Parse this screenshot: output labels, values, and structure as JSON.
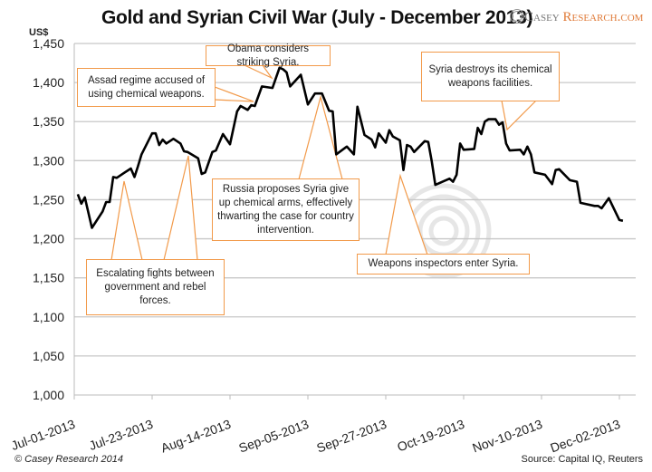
{
  "chart_data": {
    "type": "line",
    "title": "Gold and Syrian Civil War (July - December 2013)",
    "ylabel": "US$",
    "xlabel": "",
    "ylim": [
      1000,
      1450
    ],
    "yticks": [
      "1,000",
      "1,050",
      "1,100",
      "1,150",
      "1,200",
      "1,250",
      "1,300",
      "1,350",
      "1,400",
      "1,450"
    ],
    "xticks": [
      "Jul-01-2013",
      "Jul-23-2013",
      "Aug-14-2013",
      "Sep-05-2013",
      "Sep-27-2013",
      "Oct-19-2013",
      "Nov-10-2013",
      "Dec-02-2013"
    ],
    "xlim": [
      "2013-07-01",
      "2013-12-04"
    ],
    "grid": "horizontal",
    "line_color": "#000000",
    "series": [
      {
        "x": [
          "2013-07-02",
          "2013-07-03",
          "2013-07-04",
          "2013-07-06",
          "2013-07-09",
          "2013-07-10",
          "2013-07-11",
          "2013-07-12",
          "2013-07-13",
          "2013-07-15",
          "2013-07-17",
          "2013-07-18",
          "2013-07-19",
          "2013-07-20",
          "2013-07-23",
          "2013-07-24",
          "2013-07-25",
          "2013-07-26",
          "2013-07-27",
          "2013-07-29",
          "2013-07-31",
          "2013-08-01",
          "2013-08-02",
          "2013-08-05",
          "2013-08-06",
          "2013-08-07",
          "2013-08-09",
          "2013-08-10",
          "2013-08-12",
          "2013-08-14",
          "2013-08-16",
          "2013-08-17",
          "2013-08-19",
          "2013-08-20",
          "2013-08-21",
          "2013-08-23",
          "2013-08-26",
          "2013-08-28",
          "2013-08-29",
          "2013-08-30",
          "2013-08-31",
          "2013-09-03",
          "2013-09-05",
          "2013-09-07",
          "2013-09-09",
          "2013-09-11",
          "2013-09-12",
          "2013-09-13",
          "2013-09-16",
          "2013-09-18",
          "2013-09-19",
          "2013-09-21",
          "2013-09-23",
          "2013-09-24",
          "2013-09-25",
          "2013-09-27",
          "2013-09-28",
          "2013-09-29",
          "2013-10-01",
          "2013-10-02",
          "2013-10-03",
          "2013-10-04",
          "2013-10-05",
          "2013-10-08",
          "2013-10-09",
          "2013-10-10",
          "2013-10-11",
          "2013-10-15",
          "2013-10-16",
          "2013-10-17",
          "2013-10-18",
          "2013-10-19",
          "2013-10-22",
          "2013-10-23",
          "2013-10-24",
          "2013-10-25",
          "2013-10-26",
          "2013-10-28",
          "2013-10-29",
          "2013-10-30",
          "2013-10-31",
          "2013-11-01",
          "2013-11-04",
          "2013-11-05",
          "2013-11-06",
          "2013-11-07",
          "2013-11-08",
          "2013-11-11",
          "2013-11-13",
          "2013-11-14",
          "2013-11-15",
          "2013-11-18",
          "2013-11-20",
          "2013-11-21",
          "2013-11-25",
          "2013-11-26",
          "2013-11-27",
          "2013-11-29",
          "2013-12-02",
          "2013-12-03"
        ],
        "y": [
          1257,
          1245,
          1253,
          1214,
          1235,
          1247,
          1247,
          1279,
          1278,
          1284,
          1290,
          1279,
          1293,
          1308,
          1335,
          1335,
          1320,
          1327,
          1322,
          1328,
          1322,
          1312,
          1311,
          1303,
          1283,
          1285,
          1311,
          1313,
          1334,
          1321,
          1363,
          1370,
          1365,
          1371,
          1370,
          1395,
          1393,
          1419,
          1417,
          1413,
          1395,
          1410,
          1372,
          1386,
          1386,
          1364,
          1363,
          1308,
          1318,
          1308,
          1369,
          1333,
          1327,
          1317,
          1335,
          1323,
          1339,
          1331,
          1326,
          1288,
          1320,
          1318,
          1311,
          1325,
          1324,
          1299,
          1269,
          1277,
          1273,
          1282,
          1322,
          1314,
          1315,
          1342,
          1334,
          1350,
          1353,
          1353,
          1346,
          1349,
          1322,
          1313,
          1314,
          1308,
          1318,
          1308,
          1285,
          1282,
          1270,
          1288,
          1289,
          1275,
          1273,
          1246,
          1242,
          1242,
          1239,
          1252,
          1224,
          1223
        ]
      }
    ],
    "annotations": [
      "Assad regime accused of using chemical weapons.",
      "Obama considers striking Syria.",
      "Russia proposes Syria give up chemical arms, effectively thwarting the case for country intervention.",
      "Escalating fights between government and rebel forces.",
      "Weapons inspectors enter Syria.",
      "Syria destroys its chemical weapons facilities."
    ],
    "annotation_color": "#f29a4a"
  },
  "logo": {
    "casey": "Casey",
    "research": "Research.com"
  },
  "footer": {
    "copyright": "© Casey Research 2014",
    "source": "Source: Capital IQ, Reuters"
  }
}
